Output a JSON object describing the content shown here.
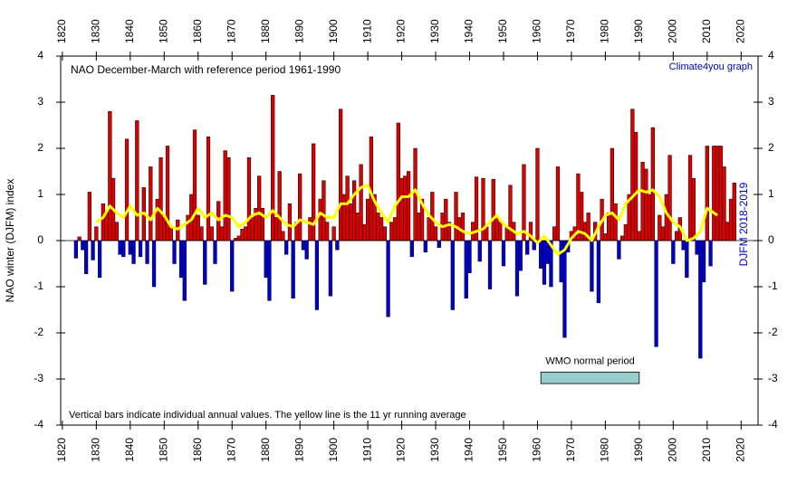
{
  "chart_data": {
    "type": "bar",
    "title": "NAO December-March with reference period 1961-1990",
    "credit": "Climate4you graph",
    "y_label": "NAO winter (DJFM) index",
    "right_label": "DJFM 2018-2019",
    "note": "Vertical bars indicate individual annual values. The yellow line is the 11 yr running average",
    "x_start": 1824,
    "xlim": [
      1819.5,
      2025
    ],
    "xticks": [
      1820,
      1830,
      1840,
      1850,
      1860,
      1870,
      1880,
      1890,
      1900,
      1910,
      1920,
      1930,
      1940,
      1950,
      1960,
      1970,
      1980,
      1990,
      2000,
      2010,
      2020
    ],
    "ylim": [
      -4,
      4
    ],
    "yticks": [
      -4,
      -3,
      -2,
      -1,
      0,
      1,
      2,
      3,
      4
    ],
    "positive_color": "#dd0000",
    "negative_color": "#0000cc",
    "values": [
      -0.38,
      0.08,
      -0.2,
      -0.72,
      1.05,
      -0.42,
      0.3,
      -0.8,
      0.8,
      0.6,
      2.8,
      1.35,
      0.4,
      -0.3,
      -0.35,
      2.2,
      -0.3,
      -0.5,
      2.6,
      -0.35,
      1.15,
      -0.5,
      1.6,
      -1.0,
      0.9,
      1.8,
      0.5,
      2.05,
      0.3,
      -0.5,
      0.45,
      -0.8,
      -1.3,
      0.55,
      1.0,
      2.4,
      0.55,
      0.3,
      -0.95,
      2.25,
      0.3,
      -0.5,
      0.85,
      0.3,
      1.95,
      1.8,
      -1.1,
      0.05,
      0.1,
      0.25,
      0.3,
      1.8,
      0.5,
      0.7,
      1.4,
      0.7,
      -0.8,
      -1.3,
      3.15,
      0.5,
      1.5,
      0.2,
      -0.3,
      0.8,
      -1.25,
      0.4,
      1.45,
      -0.2,
      -0.4,
      0.5,
      2.1,
      -1.5,
      0.9,
      1.3,
      0.4,
      -1.2,
      0.3,
      -0.2,
      2.85,
      1.0,
      1.4,
      0.8,
      1.3,
      0.6,
      1.65,
      0.35,
      0.9,
      2.25,
      1.0,
      0.6,
      0.5,
      0.3,
      -1.65,
      0.4,
      0.5,
      2.55,
      1.35,
      1.4,
      1.5,
      -0.35,
      2.0,
      0.6,
      0.9,
      -0.25,
      0.5,
      1.05,
      0.3,
      -0.15,
      0.6,
      0.9,
      0.4,
      -1.5,
      1.05,
      0.5,
      0.6,
      -1.25,
      -0.7,
      0.4,
      1.38,
      -0.45,
      1.35,
      0.3,
      -1.05,
      1.33,
      0.5,
      0.4,
      -0.55,
      0.3,
      1.2,
      0.4,
      -1.2,
      -0.65,
      1.65,
      -0.3,
      0.4,
      -0.2,
      2.0,
      -0.6,
      -0.95,
      -0.5,
      -1.0,
      0.3,
      1.6,
      -0.9,
      -2.1,
      -0.25,
      0.2,
      0.3,
      1.45,
      1.05,
      0.4,
      0.6,
      -1.1,
      0.4,
      -1.35,
      0.9,
      0.15,
      0.6,
      2.0,
      0.8,
      -0.4,
      0.1,
      0.35,
      1.0,
      2.85,
      2.35,
      0.2,
      1.7,
      1.55,
      1.0,
      2.45,
      -2.3,
      0.55,
      0.3,
      1.0,
      1.85,
      -0.5,
      0.2,
      0.5,
      -0.2,
      -0.8,
      1.85,
      1.35,
      -0.3,
      -2.55,
      -0.9,
      2.05,
      -0.55,
      2.05,
      2.05,
      2.05,
      1.6,
      0.4,
      0.9,
      1.25
    ],
    "running_average": {
      "color": "#ffff00",
      "x": [
        1830,
        1832,
        1834,
        1836,
        1838,
        1840,
        1842,
        1844,
        1846,
        1848,
        1850,
        1852,
        1854,
        1856,
        1858,
        1860,
        1862,
        1864,
        1866,
        1868,
        1870,
        1872,
        1874,
        1876,
        1878,
        1880,
        1882,
        1884,
        1886,
        1888,
        1890,
        1892,
        1894,
        1896,
        1898,
        1900,
        1902,
        1904,
        1906,
        1908,
        1910,
        1912,
        1914,
        1916,
        1918,
        1920,
        1922,
        1924,
        1926,
        1928,
        1930,
        1932,
        1934,
        1936,
        1938,
        1940,
        1942,
        1944,
        1946,
        1948,
        1950,
        1952,
        1954,
        1956,
        1958,
        1960,
        1962,
        1964,
        1966,
        1968,
        1970,
        1972,
        1974,
        1976,
        1978,
        1980,
        1982,
        1984,
        1986,
        1988,
        1990,
        1992,
        1994,
        1996,
        1998,
        2000,
        2002,
        2004,
        2006,
        2008,
        2010,
        2012,
        2013
      ],
      "values": [
        0.4,
        0.5,
        0.75,
        0.6,
        0.5,
        0.75,
        0.55,
        0.6,
        0.45,
        0.7,
        0.55,
        0.3,
        0.25,
        0.35,
        0.45,
        0.7,
        0.5,
        0.6,
        0.45,
        0.55,
        0.5,
        0.3,
        0.4,
        0.55,
        0.6,
        0.5,
        0.65,
        0.5,
        0.35,
        0.3,
        0.45,
        0.4,
        0.35,
        0.6,
        0.5,
        0.5,
        0.8,
        0.8,
        1.0,
        1.15,
        1.2,
        0.85,
        0.6,
        0.4,
        0.75,
        0.95,
        0.95,
        1.1,
        0.8,
        0.55,
        0.4,
        0.3,
        0.35,
        0.3,
        0.2,
        0.15,
        0.2,
        0.25,
        0.4,
        0.55,
        0.35,
        0.25,
        0.15,
        0.2,
        0.1,
        -0.05,
        0.1,
        -0.1,
        -0.3,
        -0.2,
        0.05,
        0.2,
        0.15,
        0.0,
        0.3,
        0.55,
        0.6,
        0.45,
        0.8,
        0.95,
        1.1,
        1.05,
        1.1,
        0.95,
        0.6,
        0.4,
        0.3,
        0.0,
        0.05,
        0.2,
        0.7,
        0.6,
        0.55
      ]
    },
    "wmo_period": {
      "label": "WMO normal period",
      "x": [
        1961,
        1990
      ],
      "y": [
        -2.85,
        -3.1
      ],
      "color": "#99cccc"
    }
  }
}
